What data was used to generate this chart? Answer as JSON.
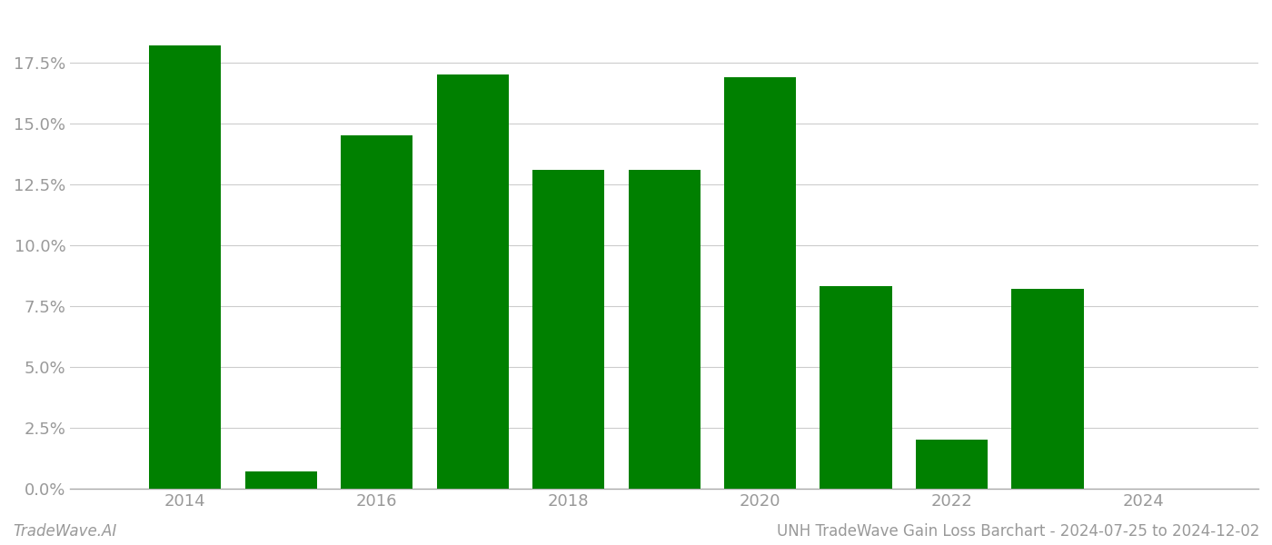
{
  "years": [
    2014,
    2015,
    2016,
    2017,
    2018,
    2019,
    2020,
    2021,
    2022,
    2023,
    2024
  ],
  "values": [
    0.182,
    0.007,
    0.145,
    0.17,
    0.131,
    0.131,
    0.169,
    0.083,
    0.02,
    0.082,
    0.0
  ],
  "bar_color": "#008000",
  "background_color": "#ffffff",
  "grid_color": "#cccccc",
  "axis_color": "#aaaaaa",
  "tick_label_color": "#999999",
  "ylim": [
    0.0,
    0.195
  ],
  "yticks": [
    0.0,
    0.025,
    0.05,
    0.075,
    0.1,
    0.125,
    0.15,
    0.175
  ],
  "xticks": [
    2014,
    2016,
    2018,
    2020,
    2022,
    2024
  ],
  "xlim": [
    2012.8,
    2025.2
  ],
  "footer_left": "TradeWave.AI",
  "footer_right": "UNH TradeWave Gain Loss Barchart - 2024-07-25 to 2024-12-02",
  "bar_width": 0.75,
  "tick_fontsize": 13,
  "footer_fontsize": 12
}
